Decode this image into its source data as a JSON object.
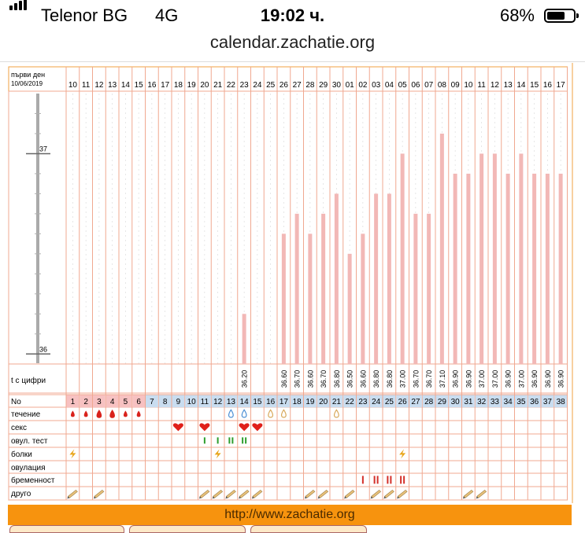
{
  "status": {
    "carrier": "Telenor BG",
    "network": "4G",
    "time": "19:02 ч.",
    "battery": "68%",
    "battery_level": 0.68
  },
  "browser": {
    "url": "calendar.zachatie.org"
  },
  "chart_data": {
    "type": "bar",
    "header": {
      "label": "първи ден",
      "date": "10/06/2019"
    },
    "dates": [
      "10",
      "11",
      "12",
      "13",
      "14",
      "15",
      "16",
      "17",
      "18",
      "19",
      "20",
      "21",
      "22",
      "23",
      "24",
      "25",
      "26",
      "27",
      "28",
      "29",
      "30",
      "01",
      "02",
      "03",
      "04",
      "05",
      "06",
      "07",
      "08",
      "09",
      "10",
      "11",
      "12",
      "13",
      "14",
      "15",
      "16",
      "17"
    ],
    "cycle_days": [
      "1",
      "2",
      "3",
      "4",
      "5",
      "6",
      "7",
      "8",
      "9",
      "10",
      "11",
      "12",
      "13",
      "14",
      "15",
      "16",
      "17",
      "18",
      "19",
      "20",
      "21",
      "22",
      "23",
      "24",
      "25",
      "26",
      "27",
      "28",
      "29",
      "30",
      "31",
      "32",
      "33",
      "34",
      "35",
      "36",
      "37",
      "38"
    ],
    "temperature_values": [
      null,
      null,
      null,
      null,
      null,
      null,
      null,
      null,
      null,
      null,
      null,
      null,
      null,
      36.2,
      null,
      null,
      36.6,
      36.7,
      36.6,
      36.7,
      36.8,
      36.5,
      36.6,
      36.8,
      36.8,
      37.0,
      36.7,
      36.7,
      37.1,
      36.9,
      36.9,
      37.0,
      37.0,
      36.9,
      37.0,
      36.9,
      36.9,
      36.9
    ],
    "temperature_labels": [
      "",
      "",
      "",
      "",
      "",
      "",
      "",
      "",
      "",
      "",
      "",
      "",
      "",
      "36.20",
      "",
      "",
      "36.60",
      "36.70",
      "36.60",
      "36.70",
      "36.80",
      "36.50",
      "36.60",
      "36.80",
      "36.80",
      "37.00",
      "36.70",
      "36.70",
      "37.10",
      "36.90",
      "36.90",
      "37.00",
      "37.00",
      "36.90",
      "37.00",
      "36.90",
      "36.90",
      "36.90"
    ],
    "ylim": [
      35.95,
      37.3
    ],
    "y_ticks": [
      "37",
      "36"
    ],
    "row_labels": {
      "temps": "t с цифри",
      "no": "No",
      "flow": "течение",
      "sex": "секс",
      "ovtest": "овул. тест",
      "pain": "болки",
      "ovulation": "овулация",
      "pregnancy": "бременност",
      "other": "друго"
    },
    "markers": {
      "flow": [
        [
          0,
          "blood"
        ],
        [
          1,
          "blood"
        ],
        [
          2,
          "blood-big"
        ],
        [
          3,
          "blood-big"
        ],
        [
          4,
          "blood"
        ],
        [
          5,
          "blood"
        ],
        [
          12,
          "drop-blue"
        ],
        [
          13,
          "drop-blue"
        ],
        [
          15,
          "drop-tan"
        ],
        [
          16,
          "drop-tan"
        ],
        [
          20,
          "drop-tan"
        ]
      ],
      "sex": [
        [
          8,
          "heart"
        ],
        [
          10,
          "heart"
        ],
        [
          13,
          "heart"
        ],
        [
          14,
          "heart"
        ]
      ],
      "ovtest": [
        [
          10,
          "test-1"
        ],
        [
          11,
          "test-1"
        ],
        [
          12,
          "test-2"
        ],
        [
          13,
          "test-2"
        ]
      ],
      "pain": [
        [
          0,
          "bolt"
        ],
        [
          11,
          "bolt"
        ],
        [
          25,
          "bolt"
        ]
      ],
      "ovulation": [],
      "pregnancy": [
        [
          22,
          "preg-1"
        ],
        [
          23,
          "preg-2"
        ],
        [
          24,
          "preg-2"
        ],
        [
          25,
          "preg-2"
        ]
      ],
      "other": [
        [
          0,
          "pencil"
        ],
        [
          2,
          "pencil"
        ],
        [
          10,
          "pencil"
        ],
        [
          11,
          "pencil"
        ],
        [
          12,
          "pencil"
        ],
        [
          13,
          "pencil"
        ],
        [
          14,
          "pencil"
        ],
        [
          18,
          "pencil"
        ],
        [
          19,
          "pencil"
        ],
        [
          21,
          "pencil"
        ],
        [
          23,
          "pencil"
        ],
        [
          24,
          "pencil"
        ],
        [
          25,
          "pencil"
        ],
        [
          30,
          "pencil"
        ],
        [
          31,
          "pencil"
        ]
      ]
    },
    "colors": {
      "grid": "#f0a890",
      "bar": "#f2b8b6",
      "cell_pink": "#f7c1c1",
      "cell_blue": "#c9ddf0",
      "frame": "#f0a040",
      "drop_red": "#d9221c",
      "heart": "#e0201a",
      "test": "#2e9e2e",
      "bolt": "#e8a417",
      "preg": "#d4302a"
    }
  },
  "footer": {
    "link": "http://www.zachatie.org"
  }
}
